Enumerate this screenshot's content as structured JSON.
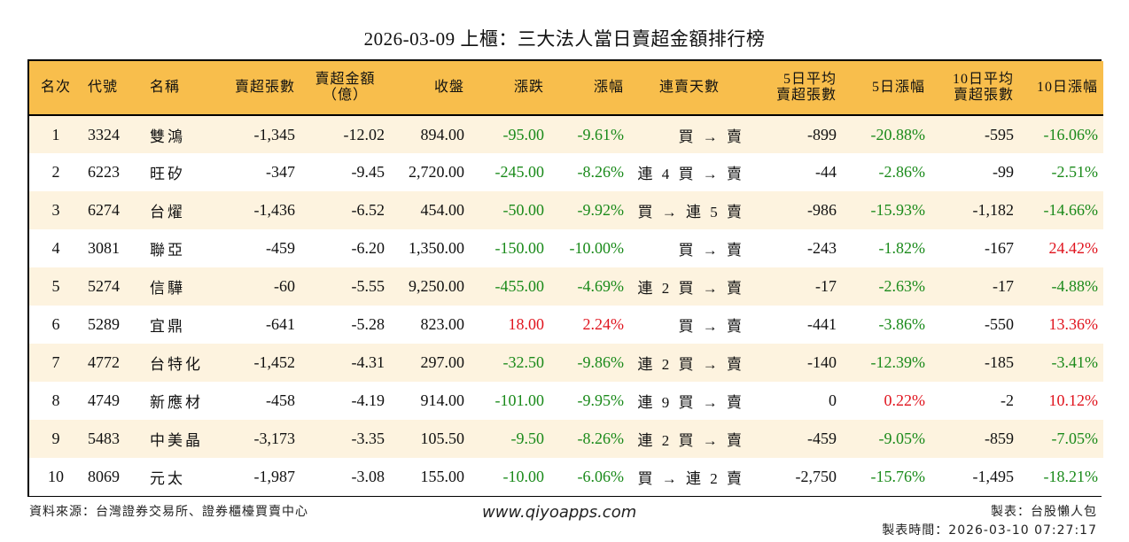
{
  "title": "2026-03-09 上櫃：三大法人當日賣超金額排行榜",
  "colors": {
    "header_bg": "#f8be4c",
    "row_alt_bg": "#fdf3df",
    "down": "#1a8a1a",
    "up": "#e0141e"
  },
  "headers": {
    "rank": "名次",
    "code": "代號",
    "name": "名稱",
    "sell_lots": "賣超張數",
    "sell_amount_1": "賣超金額",
    "sell_amount_2": "（億）",
    "close": "收盤",
    "change": "漲跌",
    "change_pct": "漲幅",
    "streak": "連賣天數",
    "avg5_1": "5日平均",
    "avg5_2": "賣超張數",
    "chg5": "5日漲幅",
    "avg10_1": "10日平均",
    "avg10_2": "賣超張數",
    "chg10": "10日漲幅"
  },
  "rows": [
    {
      "rank": "1",
      "code": "3324",
      "name": "雙鴻",
      "lots": "-1,345",
      "amount": "-12.02",
      "close": "894.00",
      "change": "-95.00",
      "change_pct": "-9.61%",
      "streak": "買 → 賣",
      "avg5": "-899",
      "chg5": "-20.88%",
      "avg10": "-595",
      "chg10": "-16.06%"
    },
    {
      "rank": "2",
      "code": "6223",
      "name": "旺矽",
      "lots": "-347",
      "amount": "-9.45",
      "close": "2,720.00",
      "change": "-245.00",
      "change_pct": "-8.26%",
      "streak": "連 4 買 → 賣",
      "avg5": "-44",
      "chg5": "-2.86%",
      "avg10": "-99",
      "chg10": "-2.51%"
    },
    {
      "rank": "3",
      "code": "6274",
      "name": "台燿",
      "lots": "-1,436",
      "amount": "-6.52",
      "close": "454.00",
      "change": "-50.00",
      "change_pct": "-9.92%",
      "streak": "買 → 連 5 賣",
      "avg5": "-986",
      "chg5": "-15.93%",
      "avg10": "-1,182",
      "chg10": "-14.66%"
    },
    {
      "rank": "4",
      "code": "3081",
      "name": "聯亞",
      "lots": "-459",
      "amount": "-6.20",
      "close": "1,350.00",
      "change": "-150.00",
      "change_pct": "-10.00%",
      "streak": "買 → 賣",
      "avg5": "-243",
      "chg5": "-1.82%",
      "avg10": "-167",
      "chg10": "24.42%"
    },
    {
      "rank": "5",
      "code": "5274",
      "name": "信驊",
      "lots": "-60",
      "amount": "-5.55",
      "close": "9,250.00",
      "change": "-455.00",
      "change_pct": "-4.69%",
      "streak": "連 2 買 → 賣",
      "avg5": "-17",
      "chg5": "-2.63%",
      "avg10": "-17",
      "chg10": "-4.88%"
    },
    {
      "rank": "6",
      "code": "5289",
      "name": "宜鼎",
      "lots": "-641",
      "amount": "-5.28",
      "close": "823.00",
      "change": "18.00",
      "change_pct": "2.24%",
      "streak": "買 → 賣",
      "avg5": "-441",
      "chg5": "-3.86%",
      "avg10": "-550",
      "chg10": "13.36%"
    },
    {
      "rank": "7",
      "code": "4772",
      "name": "台特化",
      "lots": "-1,452",
      "amount": "-4.31",
      "close": "297.00",
      "change": "-32.50",
      "change_pct": "-9.86%",
      "streak": "連 2 買 → 賣",
      "avg5": "-140",
      "chg5": "-12.39%",
      "avg10": "-185",
      "chg10": "-3.41%"
    },
    {
      "rank": "8",
      "code": "4749",
      "name": "新應材",
      "lots": "-458",
      "amount": "-4.19",
      "close": "914.00",
      "change": "-101.00",
      "change_pct": "-9.95%",
      "streak": "連 9 買 → 賣",
      "avg5": "0",
      "chg5": "0.22%",
      "avg10": "-2",
      "chg10": "10.12%"
    },
    {
      "rank": "9",
      "code": "5483",
      "name": "中美晶",
      "lots": "-3,173",
      "amount": "-3.35",
      "close": "105.50",
      "change": "-9.50",
      "change_pct": "-8.26%",
      "streak": "連 2 買 → 賣",
      "avg5": "-459",
      "chg5": "-9.05%",
      "avg10": "-859",
      "chg10": "-7.05%"
    },
    {
      "rank": "10",
      "code": "8069",
      "name": "元太",
      "lots": "-1,987",
      "amount": "-3.08",
      "close": "155.00",
      "change": "-10.00",
      "change_pct": "-6.06%",
      "streak": "買 → 連 2 賣",
      "avg5": "-2,750",
      "chg5": "-15.76%",
      "avg10": "-1,495",
      "chg10": "-18.21%"
    }
  ],
  "footer": {
    "source": "資料來源：台灣證券交易所、證券櫃檯買賣中心",
    "url": "www.qiyoapps.com",
    "maker": "製表：台股懶人包",
    "made_time": "製表時間：2026-03-10 07:27:17"
  }
}
